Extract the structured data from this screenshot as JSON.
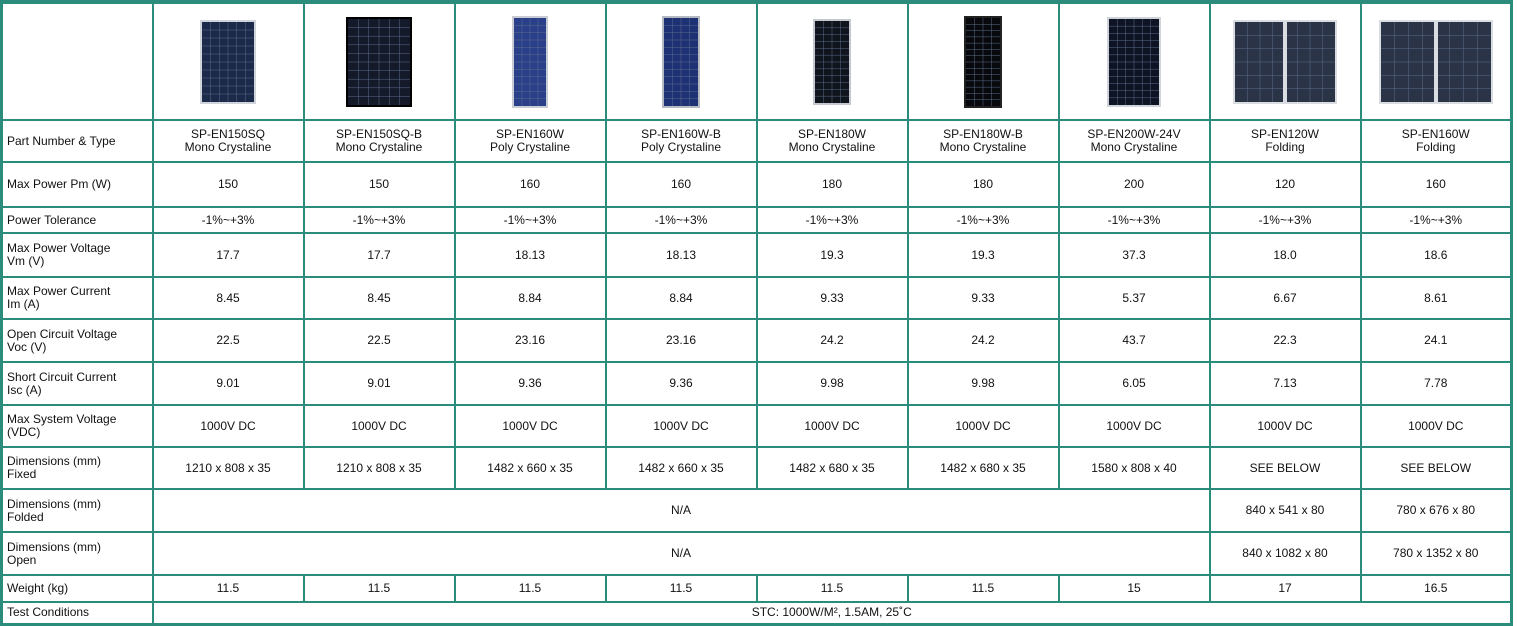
{
  "table": {
    "rows": [
      {
        "label": "Part Number & Type",
        "cells": [
          "SP-EN150SQ\nMono Crystaline",
          "SP-EN150SQ-B\nMono Crystaline",
          "SP-EN160W\nPoly Crystaline",
          "SP-EN160W-B\nPoly Crystaline",
          "SP-EN180W\nMono Crystaline",
          "SP-EN180W-B\nMono Crystaline",
          "SP-EN200W-24V\nMono Crystaline",
          "SP-EN120W\nFolding",
          "SP-EN160W\nFolding"
        ]
      },
      {
        "label": "Max Power Pm (W)",
        "cells": [
          "150",
          "150",
          "160",
          "160",
          "180",
          "180",
          "200",
          "120",
          "160"
        ]
      },
      {
        "label": "Power Tolerance",
        "cells": [
          "-1%~+3%",
          "-1%~+3%",
          "-1%~+3%",
          "-1%~+3%",
          "-1%~+3%",
          "-1%~+3%",
          "-1%~+3%",
          "-1%~+3%",
          "-1%~+3%"
        ]
      },
      {
        "label": "Max Power Voltage\nVm (V)",
        "cells": [
          "17.7",
          "17.7",
          "18.13",
          "18.13",
          "19.3",
          "19.3",
          "37.3",
          "18.0",
          "18.6"
        ]
      },
      {
        "label": "Max Power Current\nIm (A)",
        "cells": [
          "8.45",
          "8.45",
          "8.84",
          "8.84",
          "9.33",
          "9.33",
          "5.37",
          "6.67",
          "8.61"
        ]
      },
      {
        "label": "Open Circuit Voltage\nVoc (V)",
        "cells": [
          "22.5",
          "22.5",
          "23.16",
          "23.16",
          "24.2",
          "24.2",
          "43.7",
          "22.3",
          "24.1"
        ]
      },
      {
        "label": "Short Circuit Current\nIsc (A)",
        "cells": [
          "9.01",
          "9.01",
          "9.36",
          "9.36",
          "9.98",
          "9.98",
          "6.05",
          "7.13",
          "7.78"
        ]
      },
      {
        "label": "Max System Voltage\n(VDC)",
        "cells": [
          "1000V DC",
          "1000V DC",
          "1000V DC",
          "1000V DC",
          "1000V DC",
          "1000V DC",
          "1000V DC",
          "1000V DC",
          "1000V DC"
        ]
      },
      {
        "label": "Dimensions (mm)\nFixed",
        "cells": [
          "1210 x 808 x 35",
          "1210 x 808 x 35",
          "1482 x 660 x 35",
          "1482 x 660 x 35",
          "1482 x 680 x 35",
          "1482 x 680 x 35",
          "1580 x 808 x 40",
          "SEE BELOW",
          "SEE BELOW"
        ]
      },
      {
        "label": "Dimensions (mm)\nFolded",
        "cells": [
          "N/A",
          "840 x 541 x 80",
          "780 x 676 x 80"
        ]
      },
      {
        "label": "Dimensions (mm)\nOpen",
        "cells": [
          "N/A",
          "840 x 1082 x 80",
          "780 x 1352 x 80"
        ]
      },
      {
        "label": "Weight (kg)",
        "cells": [
          "11.5",
          "11.5",
          "11.5",
          "11.5",
          "11.5",
          "11.5",
          "15",
          "17",
          "16.5"
        ]
      },
      {
        "label": "Test Conditions",
        "cells": [
          "STC: 1000W/M², 1.5AM, 25˚C"
        ]
      }
    ]
  }
}
